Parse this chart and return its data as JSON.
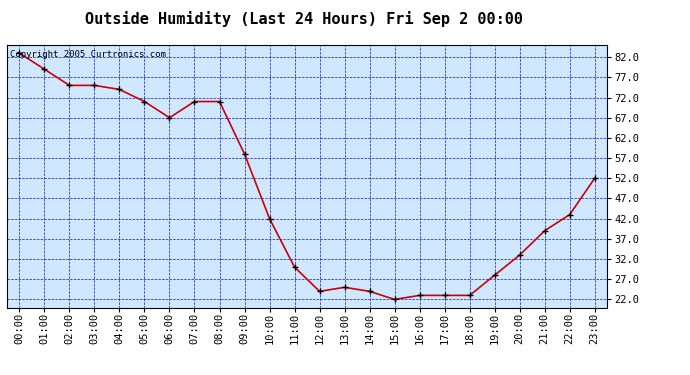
{
  "title": "Outside Humidity (Last 24 Hours) Fri Sep 2 00:00",
  "copyright": "Copyright 2005 Curtronics.com",
  "hours": [
    0,
    1,
    2,
    3,
    4,
    5,
    6,
    7,
    8,
    9,
    10,
    11,
    12,
    13,
    14,
    15,
    16,
    17,
    18,
    19,
    20,
    21,
    22,
    23
  ],
  "hour_labels": [
    "00:00",
    "01:00",
    "02:00",
    "03:00",
    "04:00",
    "05:00",
    "06:00",
    "07:00",
    "08:00",
    "09:00",
    "10:00",
    "11:00",
    "12:00",
    "13:00",
    "14:00",
    "15:00",
    "16:00",
    "17:00",
    "18:00",
    "19:00",
    "20:00",
    "21:00",
    "22:00",
    "23:00"
  ],
  "values": [
    83,
    79,
    75,
    75,
    74,
    71,
    67,
    71,
    71,
    58,
    42,
    30,
    24,
    25,
    24,
    22,
    23,
    23,
    23,
    28,
    33,
    39,
    43,
    52
  ],
  "line_color": "#cc0000",
  "marker_color": "#000000",
  "bg_color": "#d0e8ff",
  "outer_bg_color": "#ffffff",
  "grid_color": "#0000bb",
  "title_color": "#000000",
  "ylim": [
    20.0,
    85.0
  ],
  "yticks": [
    22.0,
    27.0,
    32.0,
    37.0,
    42.0,
    47.0,
    52.0,
    57.0,
    62.0,
    67.0,
    72.0,
    77.0,
    82.0
  ],
  "title_fontsize": 11,
  "tick_fontsize": 7.5,
  "copyright_fontsize": 6.5
}
